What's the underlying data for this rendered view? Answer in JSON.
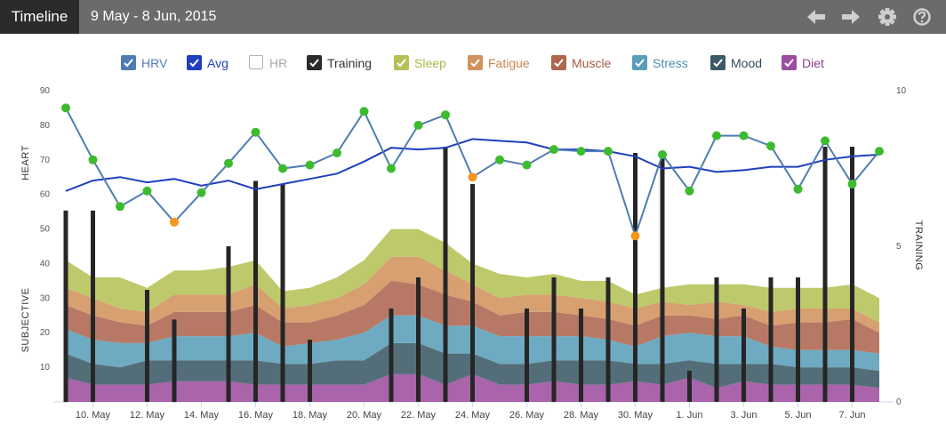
{
  "header": {
    "tab_label": "Timeline",
    "date_range": "9 May - 8 Jun, 2015",
    "icons": [
      "arrow-left-icon",
      "arrow-right-icon",
      "gear-icon",
      "help-icon"
    ]
  },
  "legend": [
    {
      "id": "hrv",
      "label": "HRV",
      "checked": true,
      "color": "#4f7db3",
      "text_color": "#4f7db3"
    },
    {
      "id": "avg",
      "label": "Avg",
      "checked": true,
      "color": "#1f3fbf",
      "text_color": "#1f3fbf"
    },
    {
      "id": "hr",
      "label": "HR",
      "checked": false,
      "color": "#b0b0b0",
      "text_color": "#a8a8a8"
    },
    {
      "id": "training",
      "label": "Training",
      "checked": true,
      "color": "#2b2b2b",
      "text_color": "#333333"
    },
    {
      "id": "sleep",
      "label": "Sleep",
      "checked": true,
      "color": "#b5c157",
      "text_color": "#a9b84a"
    },
    {
      "id": "fatigue",
      "label": "Fatigue",
      "checked": true,
      "color": "#d1935d",
      "text_color": "#c8844d"
    },
    {
      "id": "muscle",
      "label": "Muscle",
      "checked": true,
      "color": "#ad6650",
      "text_color": "#a35a44"
    },
    {
      "id": "stress",
      "label": "Stress",
      "checked": true,
      "color": "#5a9fba",
      "text_color": "#4a8fab"
    },
    {
      "id": "mood",
      "label": "Mood",
      "checked": true,
      "color": "#3c5a66",
      "text_color": "#2f4d59"
    },
    {
      "id": "diet",
      "label": "Diet",
      "checked": true,
      "color": "#9d4f9f",
      "text_color": "#8e3f90"
    }
  ],
  "chart_data": {
    "type": "line",
    "x_start": "9 May",
    "x": [
      "9 May",
      "10 May",
      "11 May",
      "12 May",
      "13 May",
      "14 May",
      "15 May",
      "16 May",
      "17 May",
      "18 May",
      "19 May",
      "20 May",
      "21 May",
      "22 May",
      "23 May",
      "24 May",
      "25 May",
      "26 May",
      "27 May",
      "28 May",
      "29 May",
      "30 May",
      "31 May",
      "1 Jun",
      "2 Jun",
      "3 Jun",
      "4 Jun",
      "5 Jun",
      "6 Jun",
      "7 Jun",
      "8 Jun"
    ],
    "x_tick_labels": [
      "10. May",
      "12. May",
      "14. May",
      "16. May",
      "18. May",
      "20. May",
      "22. May",
      "24. May",
      "26. May",
      "28. May",
      "30. May",
      "1. Jun",
      "3. Jun",
      "5. Jun",
      "7. Jun"
    ],
    "left_axis": {
      "upper_label": "HEART",
      "lower_label": "SUBJECTIVE",
      "ticks": [
        10,
        20,
        30,
        40,
        50,
        60,
        70,
        80,
        90
      ],
      "range": [
        0,
        90
      ]
    },
    "right_axis": {
      "label": "TRAINING",
      "ticks": [
        0,
        5,
        10
      ],
      "range": [
        0,
        10
      ]
    },
    "hrv": [
      85,
      70,
      56.5,
      61,
      52,
      60.5,
      69,
      78,
      67.5,
      68.5,
      72,
      84,
      67.5,
      80,
      83,
      65,
      70,
      68.5,
      73,
      72.5,
      72.5,
      48,
      71.5,
      61,
      77,
      77,
      74,
      61.5,
      75.5,
      63,
      72.5
    ],
    "hrv_orange_points": [
      4,
      15,
      21
    ],
    "hrv_point_colors": {
      "normal": "#3dbb2e",
      "alert": "#f5961d"
    },
    "avg": [
      61,
      64,
      65,
      63.5,
      64.5,
      62.5,
      64,
      61.5,
      63,
      64.5,
      66,
      69.5,
      73.5,
      73,
      73.5,
      76,
      75.5,
      75,
      73,
      73,
      72.5,
      71,
      67.5,
      68,
      66.5,
      67,
      68,
      68,
      70,
      71,
      71.5
    ],
    "training": [
      6.15,
      6.15,
      null,
      3.6,
      null,
      2.65,
      null,
      5,
      7.1,
      7,
      2,
      null,
      null,
      3,
      4,
      8.2,
      7,
      null,
      3,
      4,
      3,
      4,
      8,
      8,
      1,
      4,
      3,
      4,
      4,
      8.2,
      8.2
    ],
    "training_days": [
      0,
      1,
      null,
      3,
      null,
      4,
      null,
      6,
      7,
      8,
      9,
      null,
      null,
      12,
      13,
      14,
      15,
      null,
      17,
      18,
      19,
      20,
      21,
      22,
      23,
      24,
      25,
      26,
      27,
      28,
      29
    ],
    "subjective_stacked": {
      "diet": [
        7,
        5,
        5,
        5,
        6,
        6,
        6,
        5,
        5,
        5,
        5,
        5,
        8,
        8,
        5,
        8,
        5,
        5,
        6,
        5,
        5,
        6,
        5,
        7,
        4,
        6,
        5,
        5,
        5,
        5,
        4
      ],
      "mood": [
        7,
        6,
        5,
        7,
        6,
        6,
        6,
        7,
        6,
        6,
        7,
        7,
        9,
        9,
        9,
        6,
        6,
        6,
        6,
        7,
        7,
        5,
        6,
        5,
        7,
        5,
        6,
        5,
        5,
        5,
        5
      ],
      "stress": [
        7,
        7,
        7,
        5,
        7,
        7,
        7,
        8,
        5,
        6,
        6,
        8,
        8,
        8,
        8,
        8,
        8,
        8,
        7,
        7,
        6,
        5,
        8,
        8,
        8,
        8,
        5,
        5,
        5,
        5,
        5
      ],
      "muscle": [
        7,
        7,
        6,
        5,
        7,
        7,
        7,
        8,
        7,
        6,
        7,
        8,
        10,
        9,
        9,
        7,
        6,
        7,
        7,
        6,
        6,
        6,
        6,
        5,
        5,
        6,
        6,
        8,
        8,
        9,
        6
      ],
      "fatigue": [
        5,
        5,
        4,
        4,
        5,
        5,
        5,
        6,
        4,
        5,
        5,
        6,
        7,
        8,
        7,
        5,
        5,
        5,
        5,
        5,
        5,
        5,
        4,
        3,
        5,
        3,
        4,
        4,
        4,
        3,
        3
      ],
      "sleep": [
        8,
        6,
        9,
        7,
        7,
        7,
        8,
        7,
        5,
        5,
        6,
        7,
        8,
        8,
        8,
        6,
        7,
        5,
        6,
        5,
        6,
        4,
        4,
        6,
        5,
        6,
        7,
        6,
        6,
        7,
        7
      ]
    }
  }
}
